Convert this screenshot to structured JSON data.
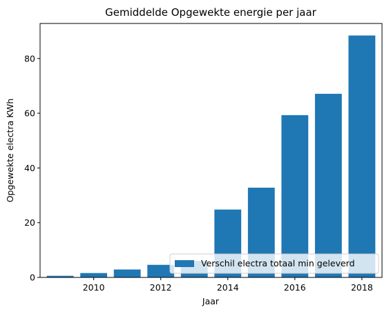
{
  "chart_data": {
    "type": "bar",
    "title": "Gemiddelde Opgewekte energie per jaar",
    "xlabel": "Jaar",
    "ylabel": "Opgewekte electra KWh",
    "x": [
      2009,
      2010,
      2011,
      2012,
      2013,
      2014,
      2015,
      2016,
      2017,
      2018
    ],
    "series": [
      {
        "name": "Verschil electra totaal min geleverd",
        "values": [
          0.6,
          1.6,
          2.9,
          4.6,
          6.0,
          24.8,
          32.8,
          59.3,
          67.1,
          88.4
        ]
      }
    ],
    "xlim": [
      2008.4,
      2018.6
    ],
    "ylim": [
      0,
      92.8
    ],
    "xticks": [
      2010,
      2012,
      2014,
      2016,
      2018
    ],
    "yticks": [
      0,
      20,
      40,
      60,
      80
    ],
    "grid": false,
    "legend_position": "lower-right",
    "colors": {
      "bar": "#1f77b4"
    }
  }
}
